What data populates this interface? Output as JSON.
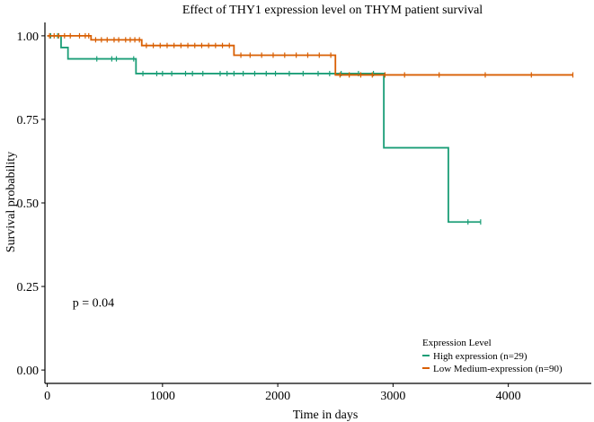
{
  "chart_data": {
    "type": "line",
    "title": "Effect of THY1 expression level on THYM patient survival",
    "xlabel": "Time in days",
    "ylabel": "Survival probability",
    "xlim": [
      -20,
      4720
    ],
    "ylim": [
      -0.04,
      1.04
    ],
    "xticks": [
      0,
      1000,
      2000,
      3000,
      4000
    ],
    "xtick_labels": [
      "0",
      "1000",
      "2000",
      "3000",
      "4000"
    ],
    "yticks": [
      0,
      0.25,
      0.5,
      0.75,
      1
    ],
    "ytick_labels": [
      "0.00",
      "0.25",
      "0.50",
      "0.75",
      "1.00"
    ],
    "annotation": "p = 0.04",
    "annotation_at": [
      220,
      0.19
    ],
    "legend": {
      "title": "Expression Level",
      "placement": "bottom-right"
    },
    "series": [
      {
        "name": "High expression (n=29)",
        "color": "#1b9e77",
        "steps": [
          [
            0,
            1.0
          ],
          [
            120,
            0.965
          ],
          [
            180,
            0.931
          ],
          [
            770,
            0.887
          ],
          [
            2920,
            0.665
          ],
          [
            3480,
            0.443
          ],
          [
            3760,
            0.443
          ]
        ],
        "censor": [
          30,
          90,
          430,
          560,
          600,
          750,
          830,
          950,
          1000,
          1080,
          1200,
          1260,
          1350,
          1500,
          1560,
          1620,
          1700,
          1800,
          1900,
          1980,
          2100,
          2220,
          2350,
          2450,
          2550,
          2700,
          2830,
          3650,
          3760
        ]
      },
      {
        "name": "Low Medium-expression (n=90)",
        "color": "#d95f02",
        "steps": [
          [
            0,
            1.0
          ],
          [
            380,
            0.988
          ],
          [
            820,
            0.971
          ],
          [
            1620,
            0.942
          ],
          [
            2500,
            0.883
          ],
          [
            4560,
            0.883
          ]
        ],
        "censor": [
          20,
          60,
          100,
          150,
          200,
          280,
          330,
          360,
          420,
          470,
          520,
          580,
          620,
          680,
          720,
          760,
          800,
          860,
          920,
          980,
          1040,
          1100,
          1160,
          1220,
          1280,
          1340,
          1400,
          1460,
          1520,
          1580,
          1680,
          1760,
          1860,
          1960,
          2060,
          2160,
          2260,
          2360,
          2460,
          2540,
          2620,
          2720,
          2820,
          2930,
          3100,
          3400,
          3800,
          4200,
          4560
        ]
      }
    ]
  }
}
